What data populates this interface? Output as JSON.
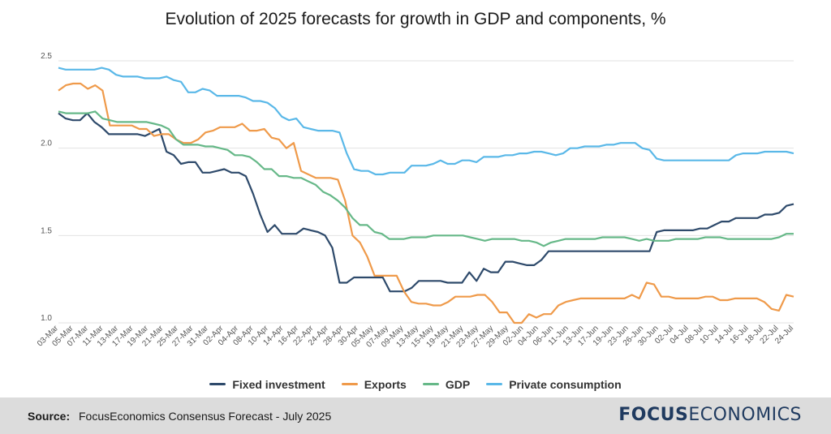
{
  "chart_data": {
    "type": "line",
    "title": "Evolution of 2025 forecasts for growth in GDP and components, %",
    "ylim": [
      1.0,
      2.5
    ],
    "yticks": [
      "2.5",
      "2.0",
      "1.5",
      "1.0"
    ],
    "ytick_values": [
      2.5,
      2.0,
      1.5,
      1.0
    ],
    "grid": true,
    "legend_position": "bottom",
    "x_tick_labels": [
      "03-Mar",
      "05-Mar",
      "07-Mar",
      "11-Mar",
      "13-Mar",
      "17-Mar",
      "19-Mar",
      "21-Mar",
      "25-Mar",
      "27-Mar",
      "31-Mar",
      "02-Apr",
      "04-Apr",
      "08-Apr",
      "10-Apr",
      "14-Apr",
      "16-Apr",
      "22-Apr",
      "24-Apr",
      "28-Apr",
      "30-Apr",
      "05-May",
      "07-May",
      "09-May",
      "13-May",
      "15-May",
      "19-May",
      "21-May",
      "23-May",
      "27-May",
      "29-May",
      "02-Jun",
      "04-Jun",
      "06-Jun",
      "11-Jun",
      "13-Jun",
      "17-Jun",
      "19-Jun",
      "23-Jun",
      "26-Jun",
      "30-Jun",
      "02-Jul",
      "04-Jul",
      "08-Jul",
      "10-Jul",
      "14-Jul",
      "16-Jul",
      "18-Jul",
      "22-Jul",
      "24-Jul"
    ],
    "series": [
      {
        "name": "Fixed investment",
        "color": "#2e4a6b",
        "values": [
          2.2,
          2.17,
          2.16,
          2.16,
          2.2,
          2.15,
          2.12,
          2.08,
          2.08,
          2.08,
          2.08,
          2.08,
          2.07,
          2.09,
          2.11,
          1.98,
          1.96,
          1.91,
          1.92,
          1.92,
          1.86,
          1.86,
          1.87,
          1.88,
          1.86,
          1.86,
          1.84,
          1.74,
          1.62,
          1.52,
          1.56,
          1.51,
          1.51,
          1.51,
          1.54,
          1.53,
          1.52,
          1.5,
          1.43,
          1.23,
          1.23,
          1.26,
          1.26,
          1.26,
          1.26,
          1.26,
          1.18,
          1.18,
          1.18,
          1.2,
          1.24,
          1.24,
          1.24,
          1.24,
          1.23,
          1.23,
          1.23,
          1.29,
          1.24,
          1.31,
          1.29,
          1.29,
          1.35,
          1.35,
          1.34,
          1.33,
          1.33,
          1.36,
          1.41,
          1.41,
          1.41,
          1.41,
          1.41,
          1.41,
          1.41,
          1.41,
          1.41,
          1.41,
          1.41,
          1.41,
          1.41,
          1.41,
          1.41,
          1.52,
          1.53,
          1.53,
          1.53,
          1.53,
          1.53,
          1.54,
          1.54,
          1.56,
          1.58,
          1.58,
          1.6,
          1.6,
          1.6,
          1.6,
          1.62,
          1.62,
          1.63,
          1.67,
          1.68
        ]
      },
      {
        "name": "Exports",
        "color": "#ef9a4a",
        "values": [
          2.33,
          2.36,
          2.37,
          2.37,
          2.34,
          2.36,
          2.33,
          2.13,
          2.13,
          2.13,
          2.13,
          2.11,
          2.11,
          2.07,
          2.08,
          2.08,
          2.05,
          2.03,
          2.03,
          2.05,
          2.09,
          2.1,
          2.12,
          2.12,
          2.12,
          2.14,
          2.1,
          2.1,
          2.11,
          2.06,
          2.05,
          2.0,
          2.03,
          1.87,
          1.85,
          1.83,
          1.83,
          1.83,
          1.82,
          1.7,
          1.5,
          1.46,
          1.38,
          1.27,
          1.27,
          1.27,
          1.27,
          1.18,
          1.12,
          1.11,
          1.11,
          1.1,
          1.1,
          1.12,
          1.15,
          1.15,
          1.15,
          1.16,
          1.16,
          1.12,
          1.06,
          1.06,
          1.0,
          1.0,
          1.05,
          1.03,
          1.05,
          1.05,
          1.1,
          1.12,
          1.13,
          1.14,
          1.14,
          1.14,
          1.14,
          1.14,
          1.14,
          1.14,
          1.16,
          1.14,
          1.23,
          1.22,
          1.15,
          1.15,
          1.14,
          1.14,
          1.14,
          1.14,
          1.15,
          1.15,
          1.13,
          1.13,
          1.14,
          1.14,
          1.14,
          1.14,
          1.12,
          1.08,
          1.07,
          1.16,
          1.15
        ]
      },
      {
        "name": "GDP",
        "color": "#66b888",
        "values": [
          2.21,
          2.2,
          2.2,
          2.2,
          2.2,
          2.21,
          2.17,
          2.16,
          2.15,
          2.15,
          2.15,
          2.15,
          2.15,
          2.14,
          2.13,
          2.11,
          2.05,
          2.02,
          2.02,
          2.02,
          2.01,
          2.01,
          2.0,
          1.99,
          1.96,
          1.96,
          1.95,
          1.92,
          1.88,
          1.88,
          1.84,
          1.84,
          1.83,
          1.83,
          1.81,
          1.79,
          1.75,
          1.73,
          1.7,
          1.66,
          1.6,
          1.56,
          1.56,
          1.52,
          1.51,
          1.48,
          1.48,
          1.48,
          1.49,
          1.49,
          1.49,
          1.5,
          1.5,
          1.5,
          1.5,
          1.5,
          1.49,
          1.48,
          1.47,
          1.48,
          1.48,
          1.48,
          1.48,
          1.47,
          1.47,
          1.46,
          1.44,
          1.46,
          1.47,
          1.48,
          1.48,
          1.48,
          1.48,
          1.48,
          1.49,
          1.49,
          1.49,
          1.49,
          1.48,
          1.47,
          1.48,
          1.47,
          1.47,
          1.47,
          1.48,
          1.48,
          1.48,
          1.48,
          1.49,
          1.49,
          1.49,
          1.48,
          1.48,
          1.48,
          1.48,
          1.48,
          1.48,
          1.48,
          1.49,
          1.51,
          1.51
        ]
      },
      {
        "name": "Private consumption",
        "color": "#5ab8e8",
        "values": [
          2.46,
          2.45,
          2.45,
          2.45,
          2.45,
          2.45,
          2.46,
          2.45,
          2.42,
          2.41,
          2.41,
          2.41,
          2.4,
          2.4,
          2.4,
          2.41,
          2.39,
          2.38,
          2.32,
          2.32,
          2.34,
          2.33,
          2.3,
          2.3,
          2.3,
          2.3,
          2.29,
          2.27,
          2.27,
          2.26,
          2.23,
          2.18,
          2.16,
          2.17,
          2.12,
          2.11,
          2.1,
          2.1,
          2.1,
          2.09,
          1.97,
          1.88,
          1.87,
          1.87,
          1.85,
          1.85,
          1.86,
          1.86,
          1.86,
          1.9,
          1.9,
          1.9,
          1.91,
          1.93,
          1.91,
          1.91,
          1.93,
          1.93,
          1.92,
          1.95,
          1.95,
          1.95,
          1.96,
          1.96,
          1.97,
          1.97,
          1.98,
          1.98,
          1.97,
          1.96,
          1.97,
          2.0,
          2.0,
          2.01,
          2.01,
          2.01,
          2.02,
          2.02,
          2.03,
          2.03,
          2.03,
          2.0,
          1.99,
          1.94,
          1.93,
          1.93,
          1.93,
          1.93,
          1.93,
          1.93,
          1.93,
          1.93,
          1.93,
          1.93,
          1.96,
          1.97,
          1.97,
          1.97,
          1.98,
          1.98,
          1.98,
          1.98,
          1.97
        ]
      }
    ]
  },
  "source": {
    "label": "Source:",
    "text": "FocusEconomics Consensus Forecast - July 2025"
  },
  "logo": {
    "part1": "FOCUS",
    "part2": "ECONOMICS"
  }
}
